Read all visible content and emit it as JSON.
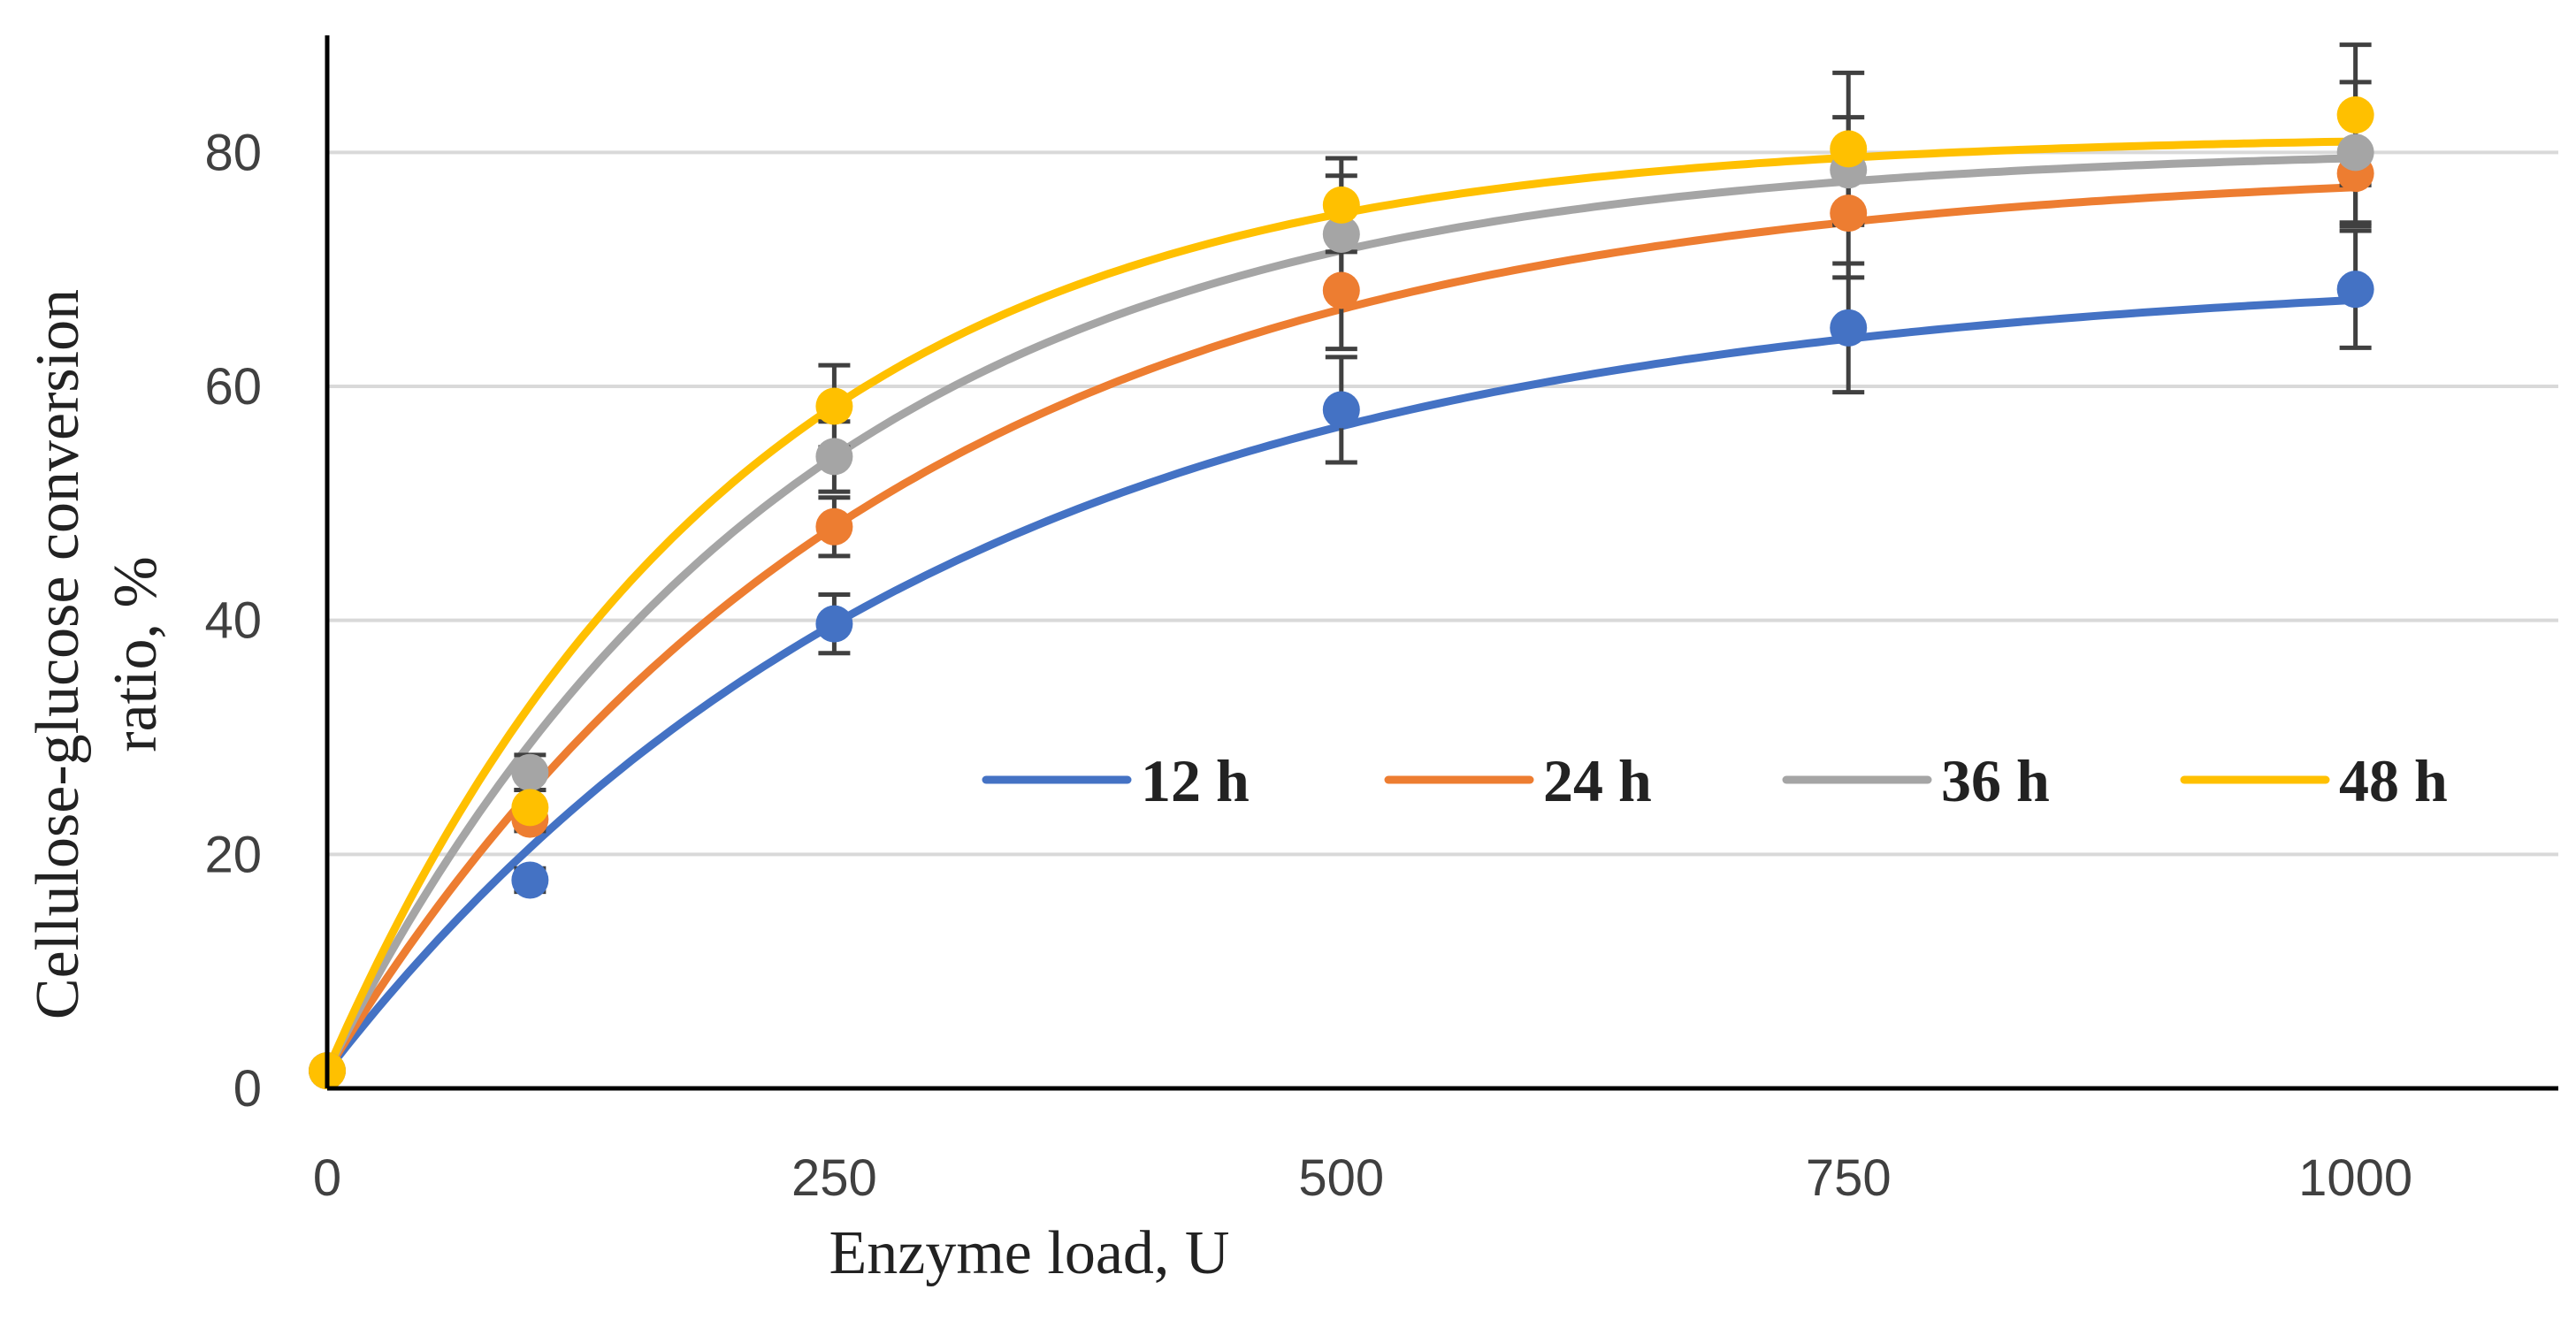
{
  "chart_data": {
    "type": "line",
    "title": "",
    "xlabel": "Enzyme load, U",
    "ylabel_line1": "Cellulose-glucose  conversion",
    "ylabel_line2": "ratio, %",
    "xlim": [
      0,
      1100
    ],
    "ylim": [
      0,
      90
    ],
    "x_ticks": [
      0,
      250,
      500,
      750,
      1000
    ],
    "x_tick_labels": [
      "0",
      "250",
      "500",
      "750",
      "1000"
    ],
    "y_ticks": [
      0,
      20,
      40,
      60,
      80
    ],
    "y_tick_labels": [
      "0",
      "20",
      "40",
      "60",
      "80"
    ],
    "grid": "horizontal",
    "legend_position": "center-right",
    "x": [
      0,
      100,
      250,
      500,
      750,
      1000
    ],
    "series": [
      {
        "name": "12 h",
        "color": "#4472C4",
        "values": [
          1.5,
          17.8,
          39.7,
          58.0,
          65.0,
          68.3
        ],
        "errors": [
          0,
          1.0,
          2.5,
          4.5,
          5.5,
          5.0
        ],
        "fit_asymptote": 70
      },
      {
        "name": "24 h",
        "color": "#ED7D31",
        "values": [
          1.5,
          23.0,
          48.0,
          68.2,
          74.8,
          78.2
        ],
        "errors": [
          0,
          1.0,
          2.5,
          5.0,
          5.5,
          4.5
        ],
        "fit_asymptote": 79
      },
      {
        "name": "36 h",
        "color": "#A5A5A5",
        "values": [
          1.5,
          27.0,
          54.0,
          73.0,
          78.5,
          80.0
        ],
        "errors": [
          0,
          1.5,
          3.0,
          5.0,
          4.5,
          6.0
        ],
        "fit_asymptote": 80.5
      },
      {
        "name": "48 h",
        "color": "#FFC000",
        "values": [
          1.5,
          24.0,
          58.3,
          75.5,
          80.3,
          83.2
        ],
        "errors": [
          0,
          1.5,
          3.5,
          4.0,
          6.5,
          6.0
        ],
        "fit_asymptote": 81.5
      }
    ]
  }
}
